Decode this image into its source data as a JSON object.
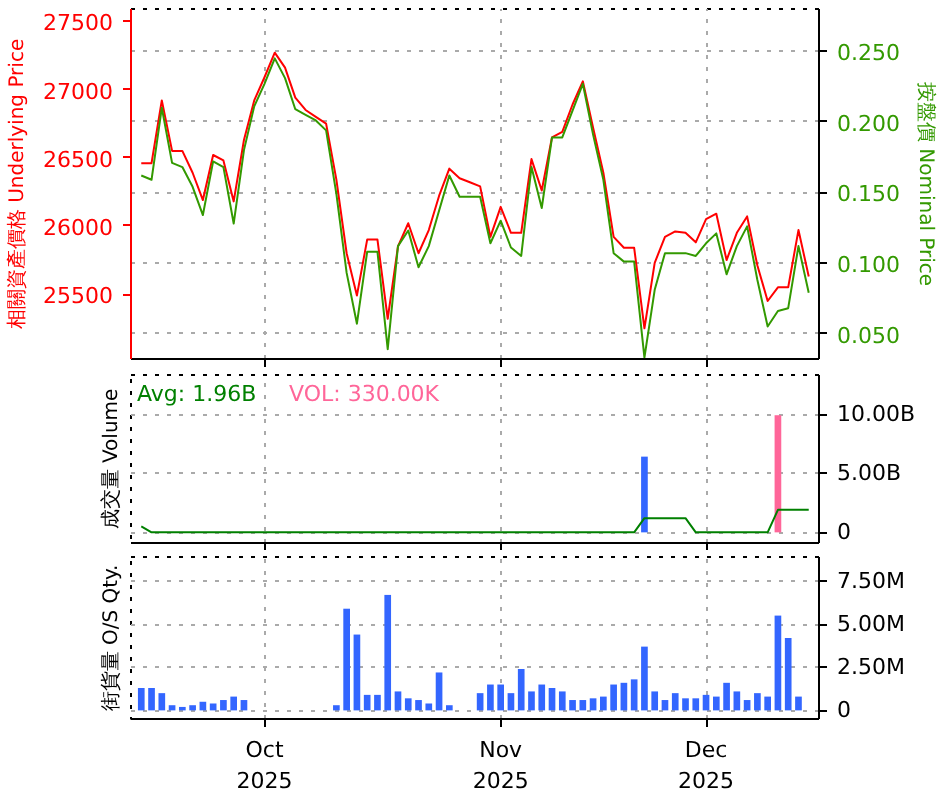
{
  "chart_data": [
    {
      "type": "line",
      "categories": [
        null,
        null,
        null,
        null,
        null,
        null,
        null,
        null,
        null,
        null,
        null,
        null,
        null,
        null,
        null,
        null,
        null,
        null,
        null,
        null,
        null,
        null,
        null,
        null,
        null,
        null,
        null,
        null,
        null,
        null,
        null,
        null,
        null,
        null,
        null,
        null,
        null,
        null,
        null,
        null,
        null,
        null,
        null,
        null,
        null,
        null,
        null,
        null,
        null,
        null,
        null,
        null,
        null,
        null,
        null,
        null,
        null,
        null,
        null,
        null,
        null,
        null,
        null,
        null,
        null,
        null
      ],
      "tick_labels": "y",
      "grid": true,
      "ylabel": "相關資產價格 Underlying Price",
      "y2label": "按盤價 Nominal Price",
      "ylim": [
        25025,
        27590
      ],
      "yticks": [
        25500,
        26000,
        26500,
        27000,
        27500
      ],
      "y2lim": [
        0.032,
        0.28
      ],
      "y2ticks": [
        {
          "value": 0.05,
          "label": "0.050"
        },
        {
          "value": 0.1,
          "label": "0.100"
        },
        {
          "value": 0.15,
          "label": "0.150"
        },
        {
          "value": 0.2,
          "label": "0.200"
        },
        {
          "value": 0.25,
          "label": "0.250"
        }
      ],
      "series": [
        {
          "color": "#ff0000",
          "values": [
            26460,
            26460,
            26920,
            26550,
            26550,
            26390,
            26190,
            26520,
            26480,
            26180,
            26630,
            26920,
            27090,
            27270,
            27160,
            26940,
            26850,
            26800,
            26750,
            26340,
            25800,
            25490,
            25900,
            25900,
            25320,
            25850,
            26020,
            25800,
            25970,
            26220,
            26420,
            26350,
            26320,
            26290,
            25920,
            26140,
            25950,
            25950,
            26490,
            26260,
            26650,
            26690,
            26890,
            27060,
            26720,
            26390,
            25920,
            25840,
            25840,
            25250,
            25730,
            25920,
            25960,
            25950,
            25880,
            26050,
            26090,
            25750,
            25950,
            26070,
            25710,
            25450,
            25550,
            25550,
            25970,
            25630
          ]
        },
        {
          "color": "#339900",
          "axis": "y2",
          "values": [
            0.162,
            0.159,
            0.21,
            0.171,
            0.168,
            0.154,
            0.134,
            0.172,
            0.168,
            0.128,
            0.18,
            0.211,
            0.227,
            0.245,
            0.231,
            0.209,
            0.205,
            0.201,
            0.194,
            0.149,
            0.093,
            0.057,
            0.108,
            0.108,
            0.039,
            0.112,
            0.123,
            0.097,
            0.112,
            0.137,
            0.162,
            0.147,
            0.147,
            0.147,
            0.114,
            0.13,
            0.111,
            0.105,
            0.168,
            0.139,
            0.189,
            0.189,
            0.208,
            0.227,
            0.191,
            0.159,
            0.107,
            0.101,
            0.101,
            0.033,
            0.081,
            0.107,
            0.107,
            0.107,
            0.105,
            0.114,
            0.121,
            0.092,
            0.112,
            0.126,
            0.088,
            0.055,
            0.066,
            0.068,
            0.112,
            0.079
          ]
        }
      ]
    },
    {
      "type": "bar",
      "categories": [
        null,
        null,
        null,
        null,
        null,
        null,
        null,
        null,
        null,
        null,
        null,
        null,
        null,
        null,
        null,
        null,
        null,
        null,
        null,
        null,
        null,
        null,
        null,
        null,
        null,
        null,
        null,
        null,
        null,
        null,
        null,
        null,
        null,
        null,
        null,
        null,
        null,
        null,
        null,
        null,
        null,
        null,
        null,
        null,
        null,
        null,
        null,
        null,
        null,
        null,
        null,
        null,
        null,
        null,
        null,
        null,
        null,
        null,
        null,
        null,
        null,
        null,
        null,
        null,
        null,
        null
      ],
      "tick_labels": "y",
      "grid": true,
      "ylabel": "成交量 Volume",
      "ylim": [
        -0.9,
        13.3
      ],
      "yticks": [
        0,
        {
          "value": 5,
          "label": "5.00B"
        },
        {
          "value": 10,
          "label": "10.00B"
        }
      ],
      "annotations": [
        "Avg: 1.96B",
        "VOL: 330.00K"
      ],
      "series": [
        {
          "type": "bar",
          "values": [
            null,
            null,
            null,
            null,
            null,
            null,
            null,
            null,
            null,
            null,
            null,
            null,
            null,
            null,
            null,
            null,
            null,
            null,
            null,
            null,
            null,
            null,
            null,
            null,
            null,
            null,
            null,
            null,
            null,
            null,
            null,
            null,
            null,
            null,
            null,
            null,
            null,
            null,
            null,
            null,
            null,
            null,
            null,
            null,
            null,
            null,
            null,
            null,
            null,
            6.4,
            null,
            null,
            null,
            null,
            null,
            null,
            null,
            null,
            null,
            null,
            null,
            null,
            9.9,
            null,
            null,
            null
          ],
          "colors": [
            "#3366ff",
            "#3366ff",
            "#3366ff",
            "#3366ff",
            "#3366ff",
            "#3366ff",
            "#3366ff",
            "#3366ff",
            "#3366ff",
            "#3366ff",
            "#3366ff",
            "#3366ff",
            "#3366ff",
            "#3366ff",
            "#3366ff",
            "#3366ff",
            "#3366ff",
            "#3366ff",
            "#3366ff",
            "#3366ff",
            "#3366ff",
            "#3366ff",
            "#3366ff",
            "#3366ff",
            "#3366ff",
            "#3366ff",
            "#3366ff",
            "#3366ff",
            "#3366ff",
            "#3366ff",
            "#3366ff",
            "#3366ff",
            "#3366ff",
            "#3366ff",
            "#3366ff",
            "#3366ff",
            "#3366ff",
            "#3366ff",
            "#3366ff",
            "#3366ff",
            "#3366ff",
            "#3366ff",
            "#3366ff",
            "#3366ff",
            "#3366ff",
            "#3366ff",
            "#3366ff",
            "#3366ff",
            "#3366ff",
            "#3366ff",
            "#3366ff",
            "#3366ff",
            "#3366ff",
            "#3366ff",
            "#3366ff",
            "#3366ff",
            "#3366ff",
            "#3366ff",
            "#3366ff",
            "#3366ff",
            "#3366ff",
            "#3366ff",
            "#ff6699",
            "#3366ff",
            "#3366ff",
            "#3366ff"
          ]
        },
        {
          "type": "line",
          "color": "#008000",
          "values": [
            0.5,
            0,
            0,
            0,
            0,
            0,
            0,
            0,
            0,
            0,
            0,
            0,
            0,
            0,
            0,
            0,
            0,
            0,
            0,
            0,
            0,
            0,
            0,
            0,
            0,
            0,
            0,
            0,
            0,
            0,
            0,
            0,
            0,
            0,
            0,
            0,
            0,
            0,
            0,
            0,
            0,
            0,
            0,
            0,
            0,
            0,
            0,
            0,
            0,
            1.2,
            1.2,
            1.2,
            1.2,
            1.2,
            0,
            0,
            0,
            0,
            0,
            0,
            0,
            0,
            1.9,
            1.9,
            1.9,
            1.9
          ]
        }
      ]
    },
    {
      "type": "bar",
      "categories": [
        null,
        null,
        null,
        null,
        null,
        null,
        null,
        null,
        null,
        null,
        null,
        null,
        "Oct\n2025",
        null,
        null,
        null,
        null,
        null,
        null,
        null,
        null,
        null,
        null,
        null,
        null,
        null,
        null,
        null,
        null,
        null,
        null,
        null,
        null,
        null,
        null,
        "Nov\n2025",
        null,
        null,
        null,
        null,
        null,
        null,
        null,
        null,
        null,
        null,
        null,
        null,
        null,
        null,
        null,
        null,
        null,
        null,
        null,
        "Dec\n2025",
        null,
        null,
        null,
        null,
        null,
        null,
        null,
        null,
        null,
        null
      ],
      "grid": true,
      "ylabel": "街貨量 O/S Qty.",
      "ylim": [
        -0.5,
        8.9
      ],
      "yticks": [
        0,
        {
          "value": 2.5,
          "label": "2.50M"
        },
        {
          "value": 5,
          "label": "5.00M"
        },
        {
          "value": 7.5,
          "label": "7.50M"
        }
      ],
      "series": [
        {
          "color": "#3366ff",
          "values": [
            1.3,
            1.3,
            1.0,
            0.3,
            0.2,
            0.3,
            0.5,
            0.4,
            0.6,
            0.8,
            0.6,
            null,
            null,
            null,
            null,
            null,
            null,
            null,
            null,
            0.3,
            5.9,
            4.4,
            0.9,
            0.9,
            6.7,
            1.1,
            0.7,
            0.6,
            0.4,
            2.2,
            0.3,
            null,
            null,
            1.0,
            1.5,
            1.5,
            1.0,
            2.4,
            1.1,
            1.5,
            1.3,
            1.1,
            0.6,
            0.6,
            0.7,
            0.8,
            1.5,
            1.6,
            1.8,
            3.7,
            1.1,
            0.6,
            1.0,
            0.7,
            0.7,
            0.9,
            0.8,
            1.6,
            1.1,
            0.6,
            1.0,
            0.8,
            5.5,
            4.2,
            0.8,
            null
          ]
        }
      ]
    }
  ]
}
